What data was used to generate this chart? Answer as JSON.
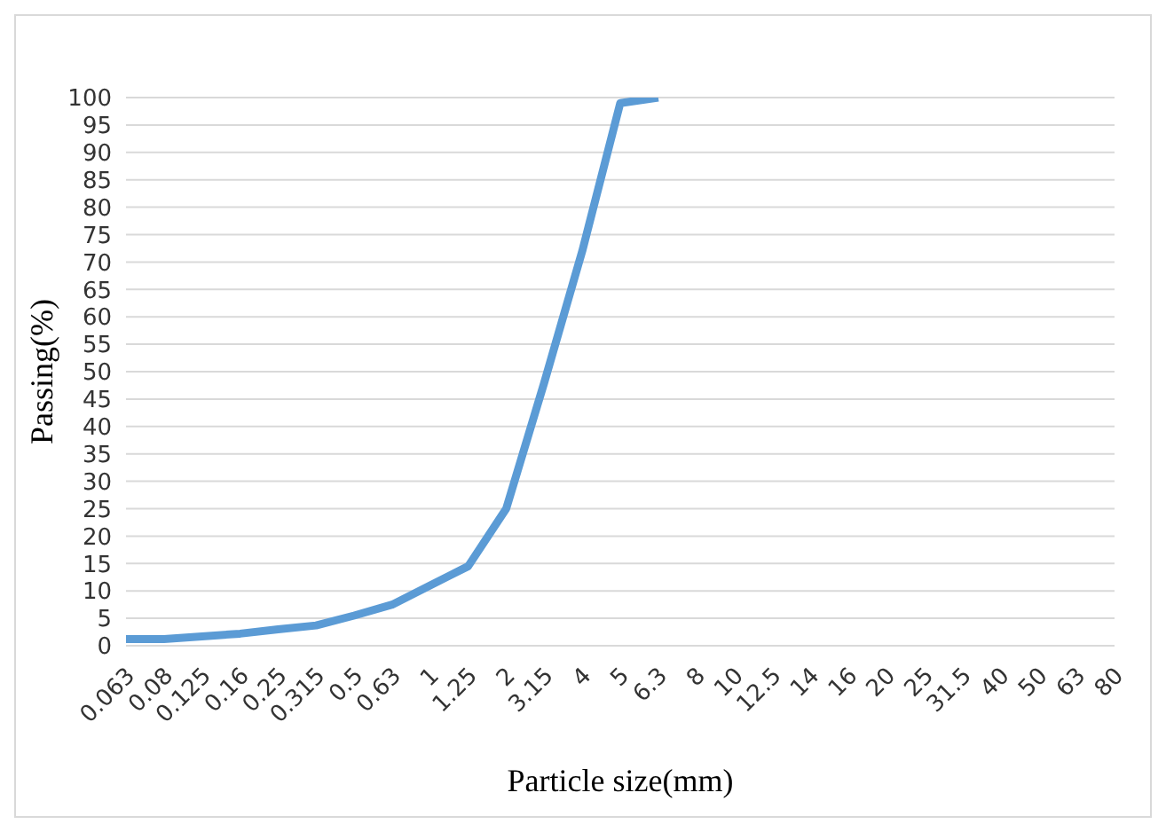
{
  "chart_data": {
    "type": "line",
    "xlabel": "Particle size(mm)",
    "ylabel": "Passing(%)",
    "categories": [
      "0.063",
      "0.08",
      "0.125",
      "0.16",
      "0.25",
      "0.315",
      "0.5",
      "0.63",
      "1",
      "1.25",
      "2",
      "3.15",
      "4",
      "5",
      "6.3",
      "8",
      "10",
      "12.5",
      "14",
      "16",
      "20",
      "25",
      "31.5",
      "40",
      "50",
      "63",
      "80"
    ],
    "series": [
      {
        "color": "#5b9bd5",
        "values": [
          1.2,
          1.2,
          1.7,
          2.2,
          3,
          3.7,
          5.5,
          7.5,
          11,
          14.5,
          25,
          48,
          72,
          99,
          100,
          null,
          null,
          null,
          null,
          null,
          null,
          null,
          null,
          null,
          null,
          null,
          null
        ]
      }
    ],
    "ylim": [
      0,
      100
    ],
    "yticks": [
      0,
      5,
      10,
      15,
      20,
      25,
      30,
      35,
      40,
      45,
      50,
      55,
      60,
      65,
      70,
      75,
      80,
      85,
      90,
      95,
      100
    ],
    "grid": "y",
    "legend": false,
    "marker": "none",
    "line_style": "solid"
  }
}
